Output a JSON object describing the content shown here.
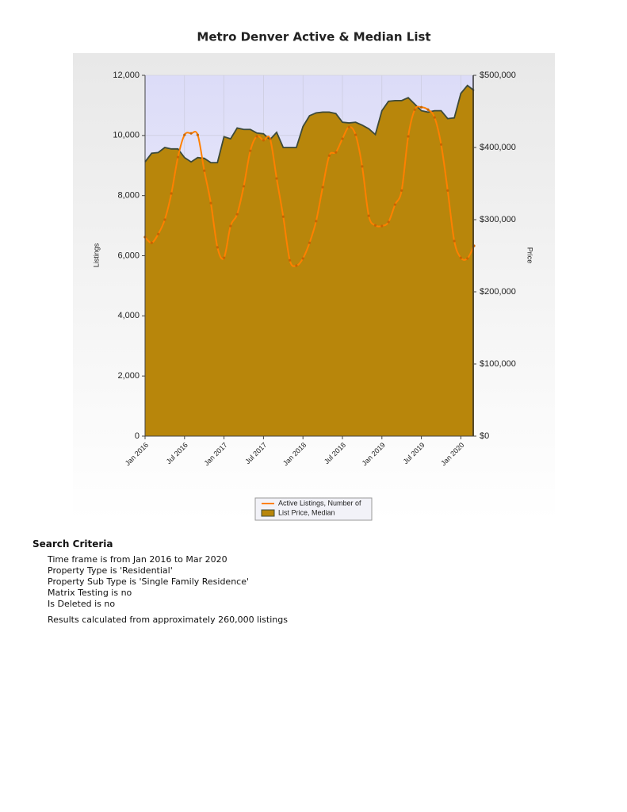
{
  "chart_data": {
    "type": "combo",
    "title": "Metro Denver Active & Median List",
    "y_label": "Listings",
    "y2_label": "Price",
    "categories": [
      "Jan 2016",
      null,
      null,
      null,
      null,
      null,
      "Jul 2016",
      null,
      null,
      null,
      null,
      null,
      "Jan 2017",
      null,
      null,
      null,
      null,
      null,
      "Jul 2017",
      null,
      null,
      null,
      null,
      null,
      "Jan 2018",
      null,
      null,
      null,
      null,
      null,
      "Jul 2018",
      null,
      null,
      null,
      null,
      null,
      "Jan 2019",
      null,
      null,
      null,
      null,
      null,
      "Jul 2019",
      null,
      null,
      null,
      null,
      null,
      "Jan 2020",
      null,
      null
    ],
    "ylim": [
      0,
      12000
    ],
    "yticks": [
      0,
      {
        "value": 2000,
        "label": "2,000"
      },
      {
        "value": 4000,
        "label": "4,000"
      },
      {
        "value": 6000,
        "label": "6,000"
      },
      {
        "value": 8000,
        "label": "8,000"
      },
      {
        "value": 10000,
        "label": "10,000"
      },
      {
        "value": 12000,
        "label": "12,000"
      }
    ],
    "y2lim": [
      0,
      500000
    ],
    "y2ticks": [
      {
        "value": 0,
        "label": "$0"
      },
      {
        "value": 100000,
        "label": "$100,000"
      },
      {
        "value": 200000,
        "label": "$200,000"
      },
      {
        "value": 300000,
        "label": "$300,000"
      },
      {
        "value": 400000,
        "label": "$400,000"
      },
      {
        "value": 500000,
        "label": "$500,000"
      }
    ],
    "grid": true,
    "series": [
      {
        "name": "List Price, Median",
        "type": "area",
        "axis": "y2",
        "color": "#b8860b",
        "values": [
          380000,
          392000,
          393000,
          400000,
          398000,
          398000,
          386000,
          380000,
          386000,
          385000,
          379000,
          379000,
          415000,
          412000,
          427000,
          425000,
          425000,
          420000,
          419000,
          411000,
          421000,
          400000,
          400000,
          400000,
          429000,
          444000,
          448000,
          449000,
          449000,
          447000,
          435000,
          434000,
          435000,
          431000,
          426000,
          418000,
          451000,
          464000,
          465000,
          465000,
          469000,
          460000,
          451000,
          449000,
          451000,
          451000,
          440000,
          441000,
          475000,
          486000,
          479000
        ]
      },
      {
        "name": "Active Listings, Number of",
        "type": "line",
        "axis": "y",
        "color": "#ff8000",
        "values": [
          6620,
          6430,
          6720,
          7200,
          8070,
          9280,
          10020,
          10070,
          10020,
          8830,
          7750,
          6280,
          5930,
          6990,
          7380,
          8310,
          9490,
          9970,
          9840,
          9890,
          8570,
          7300,
          5850,
          5670,
          5910,
          6430,
          7150,
          8280,
          9330,
          9440,
          9890,
          10280,
          10020,
          8970,
          7330,
          7010,
          6990,
          7120,
          7700,
          8170,
          9970,
          10860,
          10940,
          10860,
          10600,
          9700,
          8170,
          6490,
          5930,
          5910,
          6330
        ]
      }
    ]
  },
  "search_criteria": {
    "title": "Search Criteria",
    "lines": [
      "Time frame is from Jan 2016 to Mar 2020",
      "Property Type is 'Residential'",
      "Property Sub Type is 'Single Family Residence'",
      "Matrix Testing is no",
      "Is Deleted is no"
    ],
    "note": "Results calculated from approximately 260,000 listings"
  }
}
